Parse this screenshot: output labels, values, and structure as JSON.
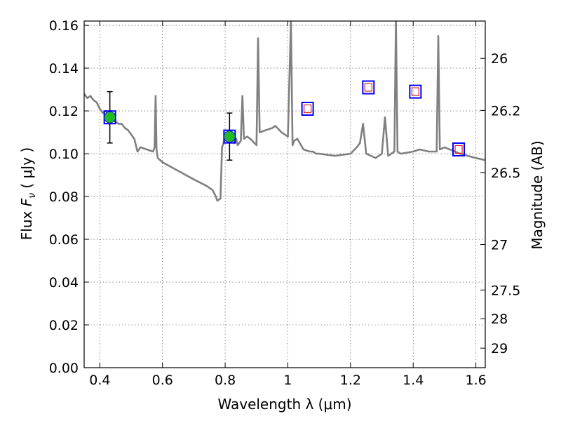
{
  "chart_data": {
    "type": "line",
    "xlabel": "Wavelength  λ (μm)",
    "ylabel_parts": {
      "prefix": "Flux  ",
      "symbol": "F",
      "subscript": "ν",
      "suffix": "  ( μJy )"
    },
    "ylabel2": "Magnitude (AB)",
    "xlim": [
      0.35,
      1.63
    ],
    "ylim": [
      0.0,
      0.162
    ],
    "grid": true,
    "x_ticks": [
      {
        "value": 0.4,
        "label": "0.4"
      },
      {
        "value": 0.6,
        "label": "0.6"
      },
      {
        "value": 0.8,
        "label": "0.8"
      },
      {
        "value": 1.0,
        "label": "1"
      },
      {
        "value": 1.2,
        "label": "1.2"
      },
      {
        "value": 1.4,
        "label": "1.4"
      },
      {
        "value": 1.6,
        "label": "1.6"
      }
    ],
    "y_ticks": [
      {
        "value": 0.0,
        "label": "0.00"
      },
      {
        "value": 0.02,
        "label": "0.02"
      },
      {
        "value": 0.04,
        "label": "0.04"
      },
      {
        "value": 0.06,
        "label": "0.06"
      },
      {
        "value": 0.08,
        "label": "0.08"
      },
      {
        "value": 0.1,
        "label": "0.10"
      },
      {
        "value": 0.12,
        "label": "0.12"
      },
      {
        "value": 0.14,
        "label": "0.14"
      },
      {
        "value": 0.16,
        "label": "0.16"
      }
    ],
    "magnitude_ticks": [
      {
        "mag": 26,
        "label": "26"
      },
      {
        "mag": 26.2,
        "label": "26.2"
      },
      {
        "mag": 26.5,
        "label": "26.5"
      },
      {
        "mag": 27,
        "label": "27"
      },
      {
        "mag": 27.5,
        "label": "27.5"
      },
      {
        "mag": 28,
        "label": "28"
      },
      {
        "mag": 29,
        "label": "29"
      }
    ],
    "series": [
      {
        "kind": "model-spectrum",
        "color": "#808080",
        "x": [
          0.35,
          0.36,
          0.37,
          0.38,
          0.39,
          0.4,
          0.41,
          0.42,
          0.43,
          0.44,
          0.45,
          0.46,
          0.47,
          0.48,
          0.49,
          0.5,
          0.51,
          0.52,
          0.53,
          0.55,
          0.57,
          0.575,
          0.578,
          0.581,
          0.585,
          0.6,
          0.65,
          0.7,
          0.74,
          0.76,
          0.77,
          0.775,
          0.785,
          0.79,
          0.8,
          0.82,
          0.83,
          0.835,
          0.84,
          0.85,
          0.855,
          0.86,
          0.87,
          0.88,
          0.9,
          0.905,
          0.91,
          0.93,
          0.95,
          0.96,
          0.98,
          1.0,
          1.01,
          1.015,
          1.02,
          1.03,
          1.05,
          1.07,
          1.08,
          1.09,
          1.1,
          1.15,
          1.2,
          1.22,
          1.23,
          1.24,
          1.25,
          1.28,
          1.3,
          1.31,
          1.32,
          1.34,
          1.345,
          1.35,
          1.36,
          1.4,
          1.42,
          1.45,
          1.475,
          1.48,
          1.485,
          1.5,
          1.55,
          1.6,
          1.63
        ],
        "y": [
          0.128,
          0.126,
          0.127,
          0.125,
          0.124,
          0.121,
          0.119,
          0.12,
          0.117,
          0.116,
          0.115,
          0.114,
          0.114,
          0.112,
          0.111,
          0.109,
          0.107,
          0.101,
          0.103,
          0.102,
          0.101,
          0.103,
          0.127,
          0.102,
          0.098,
          0.096,
          0.092,
          0.088,
          0.085,
          0.083,
          0.08,
          0.078,
          0.079,
          0.103,
          0.107,
          0.108,
          0.105,
          0.107,
          0.104,
          0.106,
          0.127,
          0.107,
          0.108,
          0.107,
          0.104,
          0.154,
          0.11,
          0.111,
          0.112,
          0.113,
          0.11,
          0.108,
          0.162,
          0.104,
          0.106,
          0.107,
          0.102,
          0.101,
          0.101,
          0.1,
          0.1,
          0.099,
          0.1,
          0.103,
          0.105,
          0.114,
          0.1,
          0.098,
          0.1,
          0.117,
          0.099,
          0.101,
          0.162,
          0.101,
          0.1,
          0.101,
          0.102,
          0.101,
          0.101,
          0.155,
          0.102,
          0.103,
          0.1,
          0.098,
          0.097
        ]
      },
      {
        "kind": "detections",
        "fill": "#22bb22",
        "edge": "#0000ff",
        "points": [
          {
            "x": 0.432,
            "y": 0.117,
            "err": 0.012
          },
          {
            "x": 0.814,
            "y": 0.108,
            "err": 0.011
          }
        ]
      },
      {
        "kind": "upper-limits",
        "edge": "#0000ff",
        "inner": "#dd2222",
        "points": [
          {
            "x": 1.063,
            "y": 0.121
          },
          {
            "x": 1.257,
            "y": 0.131
          },
          {
            "x": 1.407,
            "y": 0.129
          },
          {
            "x": 1.545,
            "y": 0.102
          }
        ]
      }
    ]
  }
}
